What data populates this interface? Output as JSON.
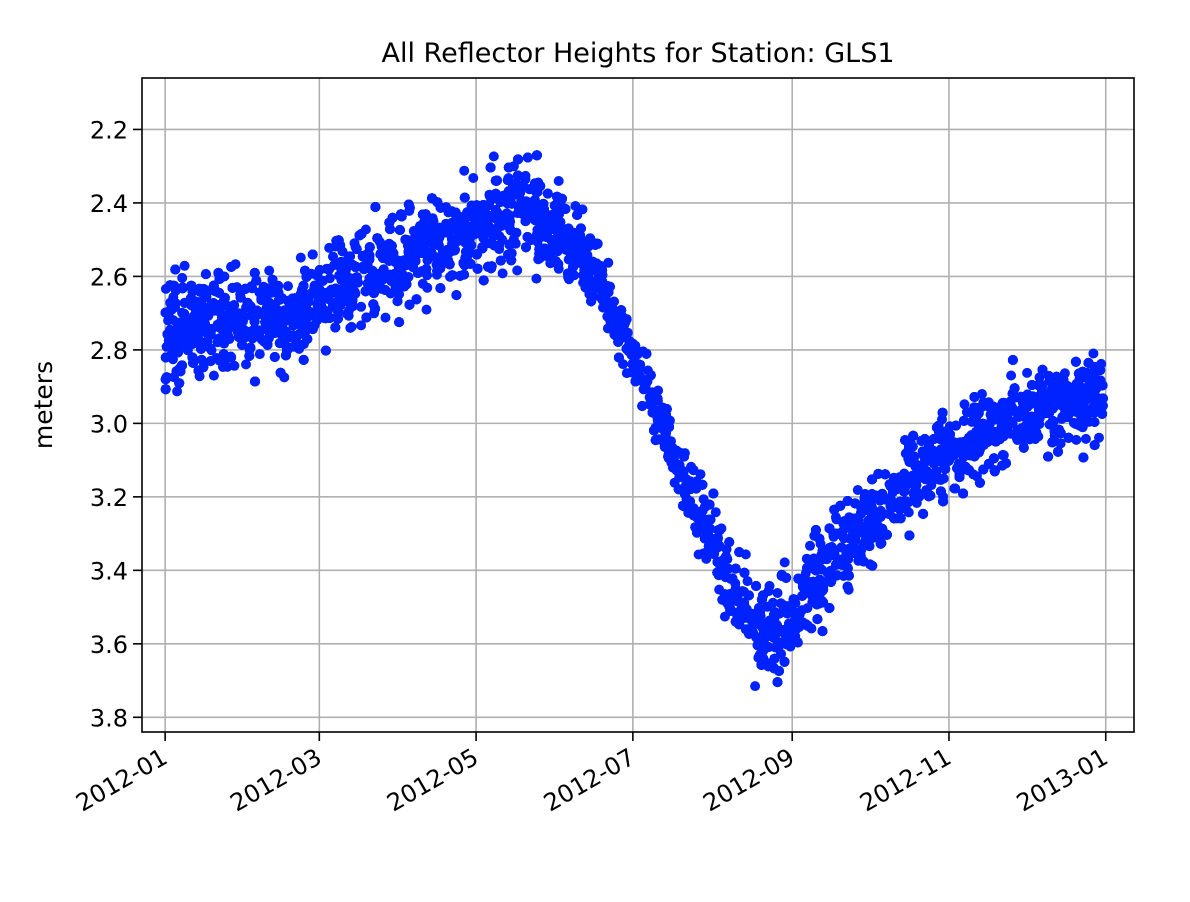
{
  "chart_data": {
    "type": "scatter",
    "title": "All Reflector Heights for Station: GLS1",
    "xlabel": "",
    "ylabel": "meters",
    "y_inverted": true,
    "ylim": [
      3.84,
      2.06
    ],
    "xlim": [
      "2011-12-23",
      "2013-01-12"
    ],
    "grid": true,
    "color": "#0022ff",
    "x_ticks": [
      "2012-01",
      "2012-03",
      "2012-05",
      "2012-07",
      "2012-09",
      "2012-11",
      "2013-01"
    ],
    "y_ticks": [
      "2.2",
      "2.4",
      "2.6",
      "2.8",
      "3.0",
      "3.2",
      "3.4",
      "3.6",
      "3.8"
    ],
    "series": [
      {
        "x": [
          "2012-01-01",
          "2012-01-08",
          "2012-01-15",
          "2012-01-22",
          "2012-02-01",
          "2012-02-10",
          "2012-02-20",
          "2012-03-01",
          "2012-03-10",
          "2012-03-20",
          "2012-04-01",
          "2012-04-10",
          "2012-04-20",
          "2012-05-01",
          "2012-05-10",
          "2012-05-20",
          "2012-06-01",
          "2012-06-10",
          "2012-06-20",
          "2012-07-01",
          "2012-07-10",
          "2012-07-20",
          "2012-08-01",
          "2012-08-10",
          "2012-08-20",
          "2012-09-01",
          "2012-09-10",
          "2012-09-20",
          "2012-10-01",
          "2012-10-10",
          "2012-10-20",
          "2012-11-01",
          "2012-11-10",
          "2012-11-20",
          "2012-12-01",
          "2012-12-10",
          "2012-12-20",
          "2012-12-31"
        ],
        "y": [
          2.78,
          2.74,
          2.72,
          2.74,
          2.72,
          2.7,
          2.71,
          2.66,
          2.63,
          2.6,
          2.57,
          2.53,
          2.51,
          2.47,
          2.44,
          2.42,
          2.47,
          2.53,
          2.64,
          2.82,
          2.97,
          3.14,
          3.3,
          3.5,
          3.58,
          3.54,
          3.43,
          3.35,
          3.27,
          3.21,
          3.14,
          3.07,
          3.04,
          3.01,
          2.98,
          2.96,
          2.94,
          2.92
        ],
        "spread": [
          0.13,
          0.12,
          0.11,
          0.11,
          0.11,
          0.11,
          0.11,
          0.11,
          0.11,
          0.12,
          0.11,
          0.11,
          0.11,
          0.11,
          0.12,
          0.12,
          0.11,
          0.09,
          0.07,
          0.06,
          0.07,
          0.08,
          0.09,
          0.11,
          0.11,
          0.11,
          0.1,
          0.1,
          0.1,
          0.1,
          0.1,
          0.1,
          0.1,
          0.1,
          0.1,
          0.1,
          0.1,
          0.1
        ]
      }
    ]
  }
}
